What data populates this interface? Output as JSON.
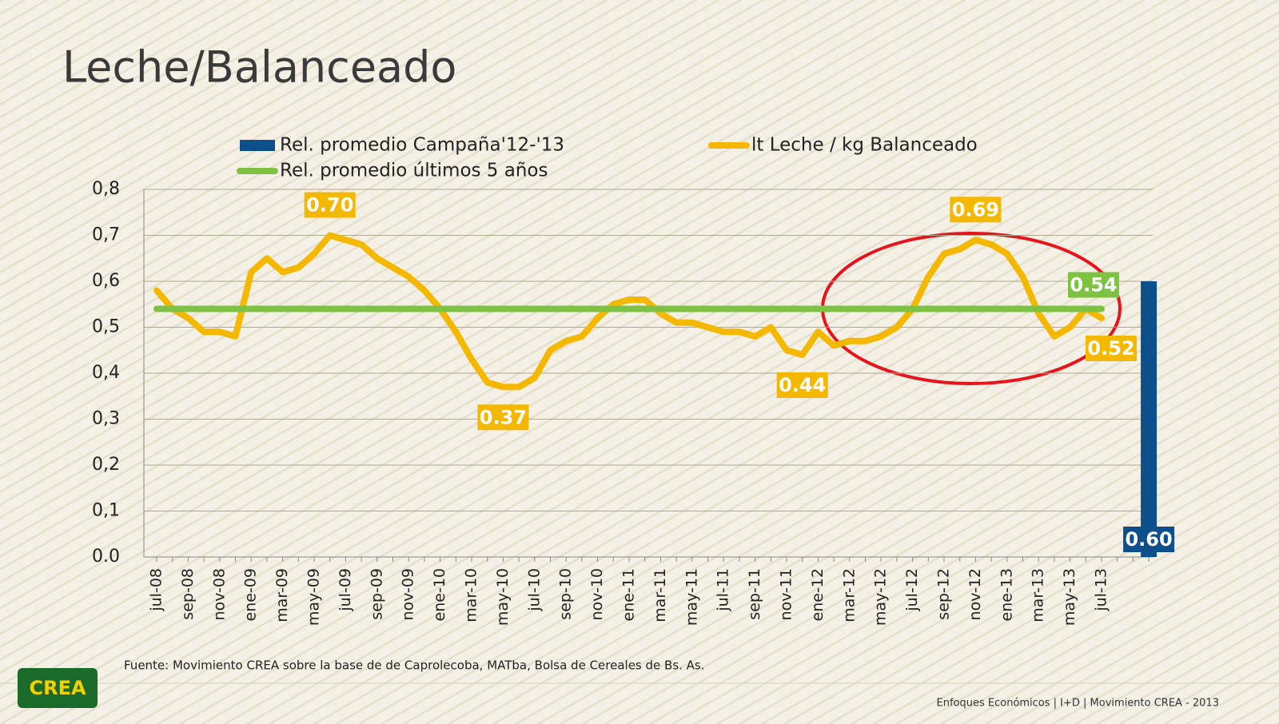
{
  "title": "Leche/Balanceado",
  "chart_data": {
    "type": "line",
    "categories": [
      "jul-08",
      null,
      "sep-08",
      null,
      "nov-08",
      null,
      "ene-09",
      null,
      "mar-09",
      null,
      "may-09",
      null,
      "jul-09",
      null,
      "sep-09",
      null,
      "nov-09",
      null,
      "ene-10",
      null,
      "mar-10",
      null,
      "may-10",
      null,
      "jul-10",
      null,
      "sep-10",
      null,
      "nov-10",
      null,
      "ene-11",
      null,
      "mar-11",
      null,
      "may-11",
      null,
      "jul-11",
      null,
      "sep-11",
      null,
      "nov-11",
      null,
      "ene-12",
      null,
      "mar-12",
      null,
      "may-12",
      null,
      "jul-12",
      null,
      "sep-12",
      null,
      "nov-12",
      null,
      "ene-13",
      null,
      "mar-13",
      null,
      "may-13",
      null,
      "jul-13",
      null,
      null,
      null
    ],
    "series": [
      {
        "name": "Rel. promedio Campaña'12-'13",
        "type": "bar",
        "color": "#0d4f8b",
        "values": [
          null,
          null,
          null,
          null,
          null,
          null,
          null,
          null,
          null,
          null,
          null,
          null,
          null,
          null,
          null,
          null,
          null,
          null,
          null,
          null,
          null,
          null,
          null,
          null,
          null,
          null,
          null,
          null,
          null,
          null,
          null,
          null,
          null,
          null,
          null,
          null,
          null,
          null,
          null,
          null,
          null,
          null,
          null,
          null,
          null,
          null,
          null,
          null,
          null,
          null,
          null,
          null,
          null,
          null,
          null,
          null,
          null,
          null,
          null,
          null,
          null,
          null,
          null,
          0.6
        ],
        "value_labels": [
          null,
          null,
          null,
          null,
          null,
          null,
          null,
          null,
          null,
          null,
          null,
          null,
          null,
          null,
          null,
          null,
          null,
          null,
          null,
          null,
          null,
          null,
          null,
          null,
          null,
          null,
          null,
          null,
          null,
          null,
          null,
          null,
          null,
          null,
          null,
          null,
          null,
          null,
          null,
          null,
          null,
          null,
          null,
          null,
          null,
          null,
          null,
          null,
          null,
          null,
          null,
          null,
          null,
          null,
          null,
          null,
          null,
          null,
          null,
          null,
          null,
          null,
          null,
          "0.60"
        ]
      },
      {
        "name": "lt Leche / kg Balanceado",
        "type": "line",
        "color": "#f5b800",
        "values": [
          0.58,
          0.54,
          0.52,
          0.49,
          0.49,
          0.48,
          0.62,
          0.65,
          0.62,
          0.63,
          0.66,
          0.7,
          0.69,
          0.68,
          0.65,
          0.63,
          0.61,
          0.58,
          0.54,
          0.49,
          0.43,
          0.38,
          0.37,
          0.37,
          0.39,
          0.45,
          0.47,
          0.48,
          0.52,
          0.55,
          0.56,
          0.56,
          0.53,
          0.51,
          0.51,
          0.5,
          0.49,
          0.49,
          0.48,
          0.5,
          0.45,
          0.44,
          0.49,
          0.46,
          0.47,
          0.47,
          0.48,
          0.5,
          0.54,
          0.61,
          0.66,
          0.67,
          0.69,
          0.68,
          0.66,
          0.61,
          0.53,
          0.48,
          0.5,
          0.54,
          0.52,
          null,
          null,
          null
        ],
        "value_labels": [
          null,
          null,
          null,
          null,
          null,
          null,
          null,
          null,
          null,
          null,
          null,
          "0.70",
          null,
          null,
          null,
          null,
          null,
          null,
          null,
          null,
          null,
          null,
          "0.37",
          null,
          null,
          null,
          null,
          null,
          null,
          null,
          null,
          null,
          null,
          null,
          null,
          null,
          null,
          null,
          null,
          null,
          null,
          "0.44",
          null,
          null,
          null,
          null,
          null,
          null,
          null,
          null,
          null,
          null,
          "0.69",
          null,
          null,
          null,
          null,
          null,
          null,
          null,
          "0.52",
          null,
          null,
          null
        ]
      },
      {
        "name": "Rel. promedio últimos 5 años",
        "type": "line",
        "color": "#7dc242",
        "values": [
          0.54,
          0.54,
          0.54,
          0.54,
          0.54,
          0.54,
          0.54,
          0.54,
          0.54,
          0.54,
          0.54,
          0.54,
          0.54,
          0.54,
          0.54,
          0.54,
          0.54,
          0.54,
          0.54,
          0.54,
          0.54,
          0.54,
          0.54,
          0.54,
          0.54,
          0.54,
          0.54,
          0.54,
          0.54,
          0.54,
          0.54,
          0.54,
          0.54,
          0.54,
          0.54,
          0.54,
          0.54,
          0.54,
          0.54,
          0.54,
          0.54,
          0.54,
          0.54,
          0.54,
          0.54,
          0.54,
          0.54,
          0.54,
          0.54,
          0.54,
          0.54,
          0.54,
          0.54,
          0.54,
          0.54,
          0.54,
          0.54,
          0.54,
          0.54,
          0.54,
          0.54,
          null,
          null,
          null
        ],
        "value_labels": [
          null,
          null,
          null,
          null,
          null,
          null,
          null,
          null,
          null,
          null,
          null,
          null,
          null,
          null,
          null,
          null,
          null,
          null,
          null,
          null,
          null,
          null,
          null,
          null,
          null,
          null,
          null,
          null,
          null,
          null,
          null,
          null,
          null,
          null,
          null,
          null,
          null,
          null,
          null,
          null,
          null,
          null,
          null,
          null,
          null,
          null,
          null,
          null,
          null,
          null,
          null,
          null,
          null,
          null,
          null,
          null,
          null,
          null,
          null,
          null,
          "0.54",
          null,
          null,
          null
        ]
      }
    ],
    "ylim": [
      0,
      0.8
    ],
    "yticks": [
      {
        "value": 0,
        "label": "0.0"
      },
      {
        "value": 0.1,
        "label": "0,1"
      },
      {
        "value": 0.2,
        "label": "0,2"
      },
      {
        "value": 0.3,
        "label": "0,3"
      },
      {
        "value": 0.4,
        "label": "0,4"
      },
      {
        "value": 0.5,
        "label": "0,5"
      },
      {
        "value": 0.6,
        "label": "0,6"
      },
      {
        "value": 0.7,
        "label": "0,7"
      },
      {
        "value": 0.8,
        "label": "0,8"
      }
    ],
    "grid": true
  },
  "source": "Fuente: Movimiento CREA sobre la base de de Caprolecoba, MATba, Bolsa de Cereales de Bs. As.",
  "footer": "Enfoques Económicos | I+D | Movimiento CREA - 2013",
  "logo": "CREA"
}
